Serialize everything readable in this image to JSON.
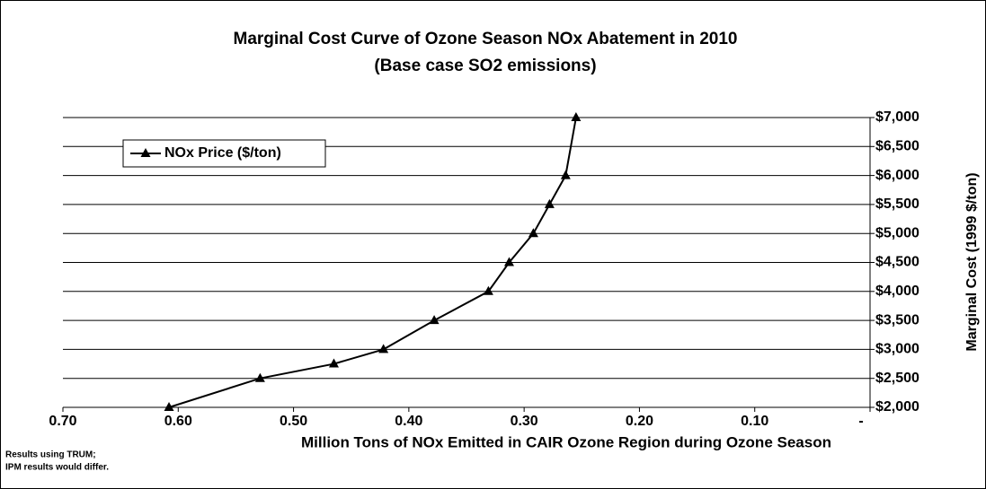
{
  "chart_data": {
    "type": "line",
    "title": "Marginal Cost Curve of Ozone Season NOx Abatement in 2010",
    "subtitle": "(Base case SO2 emissions)",
    "x_label": "Million Tons of NOx Emitted in CAIR Ozone Region during Ozone Season",
    "y_label": "Marginal Cost (1999 $/ton)",
    "notes": [
      "Results using TRUM;",
      "IPM results would differ."
    ],
    "x": [
      0.608,
      0.529,
      0.465,
      0.422,
      0.378,
      0.331,
      0.313,
      0.292,
      0.278,
      0.264,
      0.255
    ],
    "series": [
      {
        "name": "NOx Price ($/ton)",
        "color": "#000000",
        "values": [
          2000,
          2500,
          2750,
          3000,
          3500,
          4000,
          4500,
          5000,
          5500,
          6000,
          7000
        ]
      }
    ],
    "xlim": [
      0.7,
      0
    ],
    "xticks": [
      {
        "value": 0.7,
        "label": "0.70"
      },
      {
        "value": 0.6,
        "label": "0.60"
      },
      {
        "value": 0.5,
        "label": "0.50"
      },
      {
        "value": 0.4,
        "label": "0.40"
      },
      {
        "value": 0.3,
        "label": "0.30"
      },
      {
        "value": 0.2,
        "label": "0.20"
      },
      {
        "value": 0.1,
        "label": "0.10"
      },
      {
        "value": 0,
        "label": "-"
      }
    ],
    "ylim": [
      2000,
      7000
    ],
    "yticks": [
      {
        "value": 2000,
        "label": "$2,000"
      },
      {
        "value": 2500,
        "label": "$2,500"
      },
      {
        "value": 3000,
        "label": "$3,000"
      },
      {
        "value": 3500,
        "label": "$3,500"
      },
      {
        "value": 4000,
        "label": "$4,000"
      },
      {
        "value": 4500,
        "label": "$4,500"
      },
      {
        "value": 5000,
        "label": "$5,000"
      },
      {
        "value": 5500,
        "label": "$5,500"
      },
      {
        "value": 6000,
        "label": "$6,000"
      },
      {
        "value": 6500,
        "label": "$6,500"
      },
      {
        "value": 7000,
        "label": "$7,000"
      }
    ],
    "grid": true,
    "legend": "upper left"
  }
}
